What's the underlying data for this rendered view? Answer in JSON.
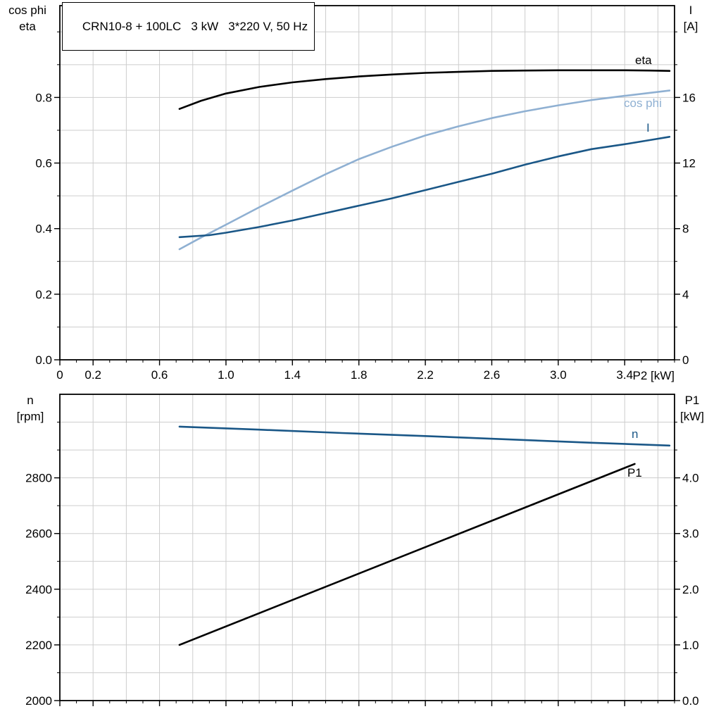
{
  "colors": {
    "black": "#000000",
    "dark_blue": "#1a5787",
    "light_blue": "#8fb0d2",
    "grid": "#cdcdcd",
    "axis": "#000000",
    "background": "#ffffff"
  },
  "chart_data": [
    {
      "type": "line",
      "title": "CRN10-8 + 100LC   3 kW   3*220 V, 50 Hz",
      "xlabel": "P2 [kW]",
      "ylabel_left_lines": [
        "cos phi",
        "eta"
      ],
      "ylabel_right_lines": [
        "I",
        "[A]"
      ],
      "xlim": [
        0,
        3.7
      ],
      "ylim_left": [
        0,
        1.08
      ],
      "ylim_right": [
        0,
        21.6
      ],
      "x_grid_step": 0.2,
      "x_minor": 0.1,
      "y_grid_step": 0.1,
      "y_minor_left": 0.1,
      "y_minor_right": 2,
      "grid": true,
      "show_x_labels": true,
      "x_ticks": [
        {
          "v": 0,
          "label": "0"
        },
        {
          "v": 0.2,
          "label": "0.2"
        },
        {
          "v": 0.6,
          "label": "0.6"
        },
        {
          "v": 1.0,
          "label": "1.0"
        },
        {
          "v": 1.4,
          "label": "1.4"
        },
        {
          "v": 1.8,
          "label": "1.8"
        },
        {
          "v": 2.2,
          "label": "2.2"
        },
        {
          "v": 2.6,
          "label": "2.6"
        },
        {
          "v": 3.0,
          "label": "3.0"
        },
        {
          "v": 3.4,
          "label": "3.4"
        }
      ],
      "y_ticks_left": [
        {
          "v": 0.0,
          "label": "0.0"
        },
        {
          "v": 0.2,
          "label": "0.2"
        },
        {
          "v": 0.4,
          "label": "0.4"
        },
        {
          "v": 0.6,
          "label": "0.6"
        },
        {
          "v": 0.8,
          "label": "0.8"
        }
      ],
      "y_ticks_right": [
        {
          "v": 0,
          "label": "0"
        },
        {
          "v": 4,
          "label": "4"
        },
        {
          "v": 8,
          "label": "8"
        },
        {
          "v": 12,
          "label": "12"
        },
        {
          "v": 16,
          "label": "16"
        }
      ],
      "series": [
        {
          "name": "eta",
          "axis": "left",
          "color_key": "black",
          "points": [
            [
              0.72,
              0.765
            ],
            [
              0.85,
              0.79
            ],
            [
              1.0,
              0.812
            ],
            [
              1.2,
              0.832
            ],
            [
              1.4,
              0.846
            ],
            [
              1.6,
              0.856
            ],
            [
              1.8,
              0.864
            ],
            [
              2.0,
              0.87
            ],
            [
              2.2,
              0.875
            ],
            [
              2.4,
              0.878
            ],
            [
              2.6,
              0.881
            ],
            [
              2.8,
              0.882
            ],
            [
              3.0,
              0.883
            ],
            [
              3.2,
              0.883
            ],
            [
              3.4,
              0.883
            ],
            [
              3.55,
              0.882
            ],
            [
              3.67,
              0.881
            ]
          ]
        },
        {
          "name": "cos phi",
          "axis": "left",
          "color_key": "light_blue",
          "points": [
            [
              0.72,
              0.337
            ],
            [
              0.85,
              0.373
            ],
            [
              1.0,
              0.412
            ],
            [
              1.2,
              0.465
            ],
            [
              1.4,
              0.516
            ],
            [
              1.6,
              0.566
            ],
            [
              1.8,
              0.612
            ],
            [
              2.0,
              0.65
            ],
            [
              2.2,
              0.684
            ],
            [
              2.4,
              0.712
            ],
            [
              2.6,
              0.737
            ],
            [
              2.8,
              0.758
            ],
            [
              3.0,
              0.776
            ],
            [
              3.2,
              0.792
            ],
            [
              3.4,
              0.805
            ],
            [
              3.55,
              0.814
            ],
            [
              3.67,
              0.821
            ]
          ]
        },
        {
          "name": "I",
          "axis": "right",
          "color_key": "dark_blue",
          "points": [
            [
              0.72,
              7.48
            ],
            [
              0.9,
              7.6
            ],
            [
              1.0,
              7.75
            ],
            [
              1.2,
              8.1
            ],
            [
              1.4,
              8.5
            ],
            [
              1.6,
              8.95
            ],
            [
              1.8,
              9.4
            ],
            [
              2.0,
              9.85
            ],
            [
              2.2,
              10.35
            ],
            [
              2.4,
              10.85
            ],
            [
              2.6,
              11.35
            ],
            [
              2.8,
              11.9
            ],
            [
              3.0,
              12.4
            ],
            [
              3.2,
              12.85
            ],
            [
              3.4,
              13.15
            ],
            [
              3.55,
              13.4
            ],
            [
              3.67,
              13.6
            ]
          ]
        }
      ]
    },
    {
      "type": "line",
      "ylabel_left_lines": [
        "n",
        "[rpm]"
      ],
      "ylabel_right_lines": [
        "P1",
        "[kW]"
      ],
      "xlim": [
        0,
        3.7
      ],
      "ylim_left": [
        2000,
        3100
      ],
      "ylim_right": [
        0,
        5.5
      ],
      "x_grid_step": 0.2,
      "x_minor": 0.1,
      "y_grid_step": 100,
      "y_minor_left": 100,
      "y_minor_right": 0.5,
      "grid": true,
      "show_x_labels": false,
      "x_ticks": [
        {
          "v": 0
        },
        {
          "v": 0.2
        },
        {
          "v": 0.6
        },
        {
          "v": 1.0
        },
        {
          "v": 1.4
        },
        {
          "v": 1.8
        },
        {
          "v": 2.2
        },
        {
          "v": 2.6
        },
        {
          "v": 3.0
        },
        {
          "v": 3.4
        }
      ],
      "y_ticks_left": [
        {
          "v": 2000,
          "label": "2000"
        },
        {
          "v": 2200,
          "label": "2200"
        },
        {
          "v": 2400,
          "label": "2400"
        },
        {
          "v": 2600,
          "label": "2600"
        },
        {
          "v": 2800,
          "label": "2800"
        }
      ],
      "y_ticks_right": [
        {
          "v": 0,
          "label": "0.0"
        },
        {
          "v": 1,
          "label": "1.0"
        },
        {
          "v": 2,
          "label": "2.0"
        },
        {
          "v": 3,
          "label": "3.0"
        },
        {
          "v": 4,
          "label": "4.0"
        }
      ],
      "series": [
        {
          "name": "n",
          "axis": "left",
          "color_key": "dark_blue",
          "points": [
            [
              0.72,
              2984
            ],
            [
              1.2,
              2973
            ],
            [
              1.7,
              2961
            ],
            [
              2.2,
              2950
            ],
            [
              2.7,
              2938
            ],
            [
              3.2,
              2926
            ],
            [
              3.67,
              2916
            ]
          ]
        },
        {
          "name": "P1",
          "axis": "right",
          "color_key": "black",
          "points": [
            [
              0.72,
              1.0
            ],
            [
              3.46,
              4.25
            ]
          ]
        }
      ]
    }
  ]
}
